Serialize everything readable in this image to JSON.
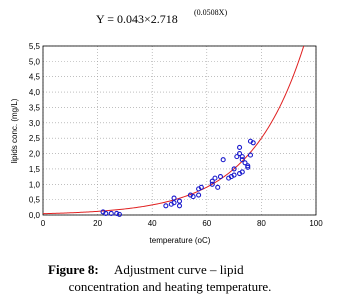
{
  "chart_data": {
    "type": "scatter",
    "title": "Y = 0.043×2.718",
    "title_superscript": "(0.0508X)",
    "x_label": "temperature (oC)",
    "y_label": "lipids conc. (mg/L)",
    "xlim": [
      0,
      100
    ],
    "ylim": [
      0,
      5.5
    ],
    "xticks": [
      0,
      20,
      40,
      60,
      80,
      100
    ],
    "yticks": [
      {
        "value": 0,
        "label": "0,0"
      },
      {
        "value": 0.5,
        "label": "0,5"
      },
      {
        "value": 1,
        "label": "1,0"
      },
      {
        "value": 1.5,
        "label": "1,5"
      },
      {
        "value": 2,
        "label": "2,0"
      },
      {
        "value": 2.5,
        "label": "2,5"
      },
      {
        "value": 3,
        "label": "3,0"
      },
      {
        "value": 3.5,
        "label": "3,5"
      },
      {
        "value": 4,
        "label": "4,0"
      },
      {
        "value": 4.5,
        "label": "4,5"
      },
      {
        "value": 5,
        "label": "5,0"
      },
      {
        "value": 5.5,
        "label": "5,5"
      }
    ],
    "grid": true,
    "color": "#1a1acc",
    "fit": {
      "a": 0.043,
      "b": 2.718,
      "k": 0.0508,
      "color": "#e02020"
    },
    "x": [
      22,
      23,
      25,
      27,
      28,
      45,
      47,
      48,
      48,
      50,
      50,
      54,
      55,
      57,
      57,
      58,
      62,
      62,
      63,
      64,
      65,
      66,
      68,
      69,
      70,
      70,
      71,
      72,
      72,
      72,
      73,
      73,
      73,
      74,
      75,
      75,
      76,
      76,
      77
    ],
    "values": [
      0.1,
      0.05,
      0.05,
      0.05,
      0.02,
      0.3,
      0.35,
      0.55,
      0.4,
      0.45,
      0.3,
      0.65,
      0.6,
      0.65,
      0.85,
      0.9,
      1.1,
      1.0,
      1.2,
      0.9,
      1.25,
      1.8,
      1.2,
      1.25,
      1.5,
      1.3,
      1.9,
      1.35,
      2.0,
      2.2,
      1.8,
      1.4,
      1.9,
      1.7,
      1.6,
      1.55,
      2.4,
      1.95,
      2.35
    ]
  },
  "caption": {
    "label": "Figure 8:",
    "lines": [
      "Adjustment curve – lipid",
      "concentration and heating temperature."
    ]
  }
}
